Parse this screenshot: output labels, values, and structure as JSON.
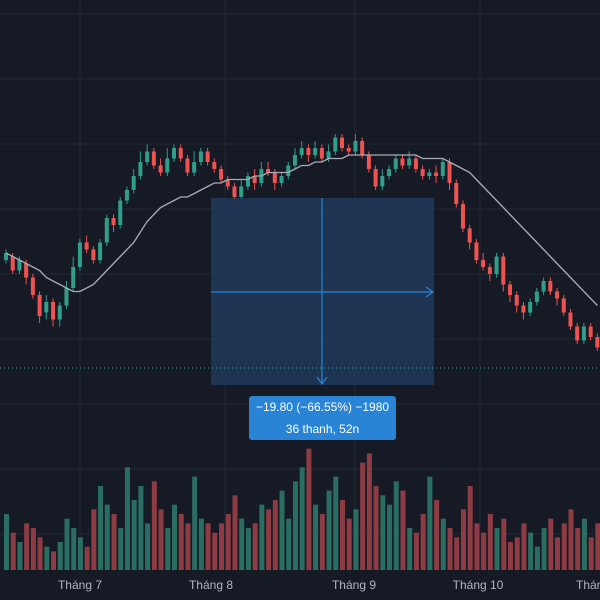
{
  "colors": {
    "background": "#161a25",
    "grid": "#232837",
    "up": "#2f9e8b",
    "down": "#ef5350",
    "volume_up": "#2a6e62",
    "volume_down": "#8d3c44",
    "ma_line": "#a7acb8",
    "measure_fill": "#1f3a5c",
    "measure_accent": "#2a84d6",
    "label_text": "#ffffff",
    "axis_text": "#b2b5be"
  },
  "measure": {
    "line1": "−19.80 (−66.55%) −1980",
    "line2": "36 thanh, 52n"
  },
  "chart_data": {
    "type": "candlestick",
    "x_axis_labels": [
      "Tháng 7",
      "Tháng 8",
      "Tháng 9",
      "Tháng 10",
      "Tháng"
    ],
    "legend": "none",
    "grid": true,
    "series": [
      {
        "kind": "candles",
        "values": [
          {
            "o": 150,
            "c": 152,
            "h": 153,
            "l": 149
          },
          {
            "o": 151,
            "c": 147,
            "h": 152,
            "l": 146
          },
          {
            "o": 147,
            "c": 150,
            "h": 151,
            "l": 146
          },
          {
            "o": 149,
            "c": 145,
            "h": 150,
            "l": 143
          },
          {
            "o": 145,
            "c": 140,
            "h": 146,
            "l": 139
          },
          {
            "o": 140,
            "c": 134,
            "h": 141,
            "l": 132
          },
          {
            "o": 135,
            "c": 138,
            "h": 140,
            "l": 133
          },
          {
            "o": 138,
            "c": 133,
            "h": 139,
            "l": 131
          },
          {
            "o": 133,
            "c": 137,
            "h": 138,
            "l": 131
          },
          {
            "o": 137,
            "c": 142,
            "h": 144,
            "l": 136
          },
          {
            "o": 142,
            "c": 148,
            "h": 151,
            "l": 141
          },
          {
            "o": 148,
            "c": 155,
            "h": 156,
            "l": 147
          },
          {
            "o": 155,
            "c": 153,
            "h": 157,
            "l": 152
          },
          {
            "o": 153,
            "c": 150,
            "h": 154,
            "l": 149
          },
          {
            "o": 150,
            "c": 155,
            "h": 156,
            "l": 149
          },
          {
            "o": 155,
            "c": 162,
            "h": 163,
            "l": 154
          },
          {
            "o": 162,
            "c": 160,
            "h": 163,
            "l": 158
          },
          {
            "o": 160,
            "c": 167,
            "h": 168,
            "l": 159
          },
          {
            "o": 167,
            "c": 170,
            "h": 171,
            "l": 166
          },
          {
            "o": 170,
            "c": 174,
            "h": 176,
            "l": 169
          },
          {
            "o": 174,
            "c": 178,
            "h": 181,
            "l": 173
          },
          {
            "o": 178,
            "c": 181,
            "h": 183,
            "l": 177
          },
          {
            "o": 181,
            "c": 177,
            "h": 182,
            "l": 176
          },
          {
            "o": 177,
            "c": 175,
            "h": 179,
            "l": 174
          },
          {
            "o": 175,
            "c": 179,
            "h": 182,
            "l": 174
          },
          {
            "o": 179,
            "c": 182,
            "h": 183,
            "l": 178
          },
          {
            "o": 182,
            "c": 179,
            "h": 183,
            "l": 178
          },
          {
            "o": 179,
            "c": 175,
            "h": 180,
            "l": 174
          },
          {
            "o": 175,
            "c": 178,
            "h": 181,
            "l": 174
          },
          {
            "o": 178,
            "c": 181,
            "h": 182,
            "l": 177
          },
          {
            "o": 181,
            "c": 178,
            "h": 182,
            "l": 177
          },
          {
            "o": 178,
            "c": 176,
            "h": 179,
            "l": 175
          },
          {
            "o": 176,
            "c": 173,
            "h": 177,
            "l": 172
          },
          {
            "o": 173,
            "c": 171,
            "h": 174,
            "l": 170
          },
          {
            "o": 171,
            "c": 168,
            "h": 172,
            "l": 167
          },
          {
            "o": 168,
            "c": 171,
            "h": 173,
            "l": 167
          },
          {
            "o": 171,
            "c": 174,
            "h": 175,
            "l": 170
          },
          {
            "o": 174,
            "c": 172,
            "h": 176,
            "l": 170
          },
          {
            "o": 172,
            "c": 176,
            "h": 178,
            "l": 171
          },
          {
            "o": 176,
            "c": 175,
            "h": 178,
            "l": 174
          },
          {
            "o": 175,
            "c": 172,
            "h": 176,
            "l": 170
          },
          {
            "o": 172,
            "c": 174,
            "h": 175,
            "l": 171
          },
          {
            "o": 174,
            "c": 177,
            "h": 178,
            "l": 173
          },
          {
            "o": 177,
            "c": 180,
            "h": 182,
            "l": 176
          },
          {
            "o": 180,
            "c": 182,
            "h": 184,
            "l": 179
          },
          {
            "o": 182,
            "c": 180,
            "h": 183,
            "l": 178
          },
          {
            "o": 180,
            "c": 182,
            "h": 184,
            "l": 179
          },
          {
            "o": 182,
            "c": 179,
            "h": 183,
            "l": 178
          },
          {
            "o": 179,
            "c": 181,
            "h": 183,
            "l": 178
          },
          {
            "o": 181,
            "c": 185,
            "h": 186,
            "l": 180
          },
          {
            "o": 185,
            "c": 182,
            "h": 186,
            "l": 181
          },
          {
            "o": 182,
            "c": 181,
            "h": 183,
            "l": 180
          },
          {
            "o": 181,
            "c": 184,
            "h": 186,
            "l": 180
          },
          {
            "o": 184,
            "c": 180,
            "h": 185,
            "l": 179
          },
          {
            "o": 180,
            "c": 176,
            "h": 181,
            "l": 175
          },
          {
            "o": 176,
            "c": 171,
            "h": 177,
            "l": 170
          },
          {
            "o": 171,
            "c": 174,
            "h": 176,
            "l": 170
          },
          {
            "o": 174,
            "c": 176,
            "h": 177,
            "l": 173
          },
          {
            "o": 176,
            "c": 179,
            "h": 180,
            "l": 175
          },
          {
            "o": 179,
            "c": 177,
            "h": 180,
            "l": 176
          },
          {
            "o": 177,
            "c": 179,
            "h": 181,
            "l": 176
          },
          {
            "o": 179,
            "c": 176,
            "h": 180,
            "l": 175
          },
          {
            "o": 176,
            "c": 174,
            "h": 177,
            "l": 173
          },
          {
            "o": 174,
            "c": 175,
            "h": 176,
            "l": 173
          },
          {
            "o": 175,
            "c": 174,
            "h": 177,
            "l": 172
          },
          {
            "o": 174,
            "c": 178,
            "h": 179,
            "l": 173
          },
          {
            "o": 178,
            "c": 172,
            "h": 179,
            "l": 170
          },
          {
            "o": 172,
            "c": 166,
            "h": 173,
            "l": 165
          },
          {
            "o": 166,
            "c": 159,
            "h": 167,
            "l": 158
          },
          {
            "o": 159,
            "c": 155,
            "h": 160,
            "l": 153
          },
          {
            "o": 155,
            "c": 150,
            "h": 156,
            "l": 149
          },
          {
            "o": 150,
            "c": 148,
            "h": 152,
            "l": 147
          },
          {
            "o": 148,
            "c": 146,
            "h": 149,
            "l": 144
          },
          {
            "o": 146,
            "c": 151,
            "h": 152,
            "l": 145
          },
          {
            "o": 151,
            "c": 143,
            "h": 152,
            "l": 141
          },
          {
            "o": 143,
            "c": 140,
            "h": 144,
            "l": 138
          },
          {
            "o": 140,
            "c": 137,
            "h": 141,
            "l": 135
          },
          {
            "o": 137,
            "c": 135,
            "h": 138,
            "l": 133
          },
          {
            "o": 135,
            "c": 138,
            "h": 139,
            "l": 134
          },
          {
            "o": 138,
            "c": 141,
            "h": 142,
            "l": 137
          },
          {
            "o": 141,
            "c": 144,
            "h": 145,
            "l": 140
          },
          {
            "o": 144,
            "c": 141,
            "h": 145,
            "l": 140
          },
          {
            "o": 141,
            "c": 139,
            "h": 142,
            "l": 137
          },
          {
            "o": 139,
            "c": 135,
            "h": 140,
            "l": 134
          },
          {
            "o": 135,
            "c": 131,
            "h": 136,
            "l": 130
          },
          {
            "o": 131,
            "c": 127,
            "h": 132,
            "l": 126
          },
          {
            "o": 127,
            "c": 131,
            "h": 132,
            "l": 126
          },
          {
            "o": 131,
            "c": 128,
            "h": 132,
            "l": 127
          },
          {
            "o": 128,
            "c": 125,
            "h": 129,
            "l": 124
          }
        ]
      },
      {
        "kind": "moving_average",
        "values": [
          152,
          151,
          150,
          149,
          148,
          147,
          145,
          144,
          143,
          142,
          141,
          141,
          142,
          143,
          145,
          147,
          149,
          151,
          153,
          155,
          158,
          161,
          163,
          165,
          166,
          167,
          168,
          168,
          169,
          170,
          171,
          172,
          172,
          173,
          173,
          173,
          173,
          174,
          174,
          175,
          175,
          175,
          175,
          176,
          177,
          177,
          178,
          178,
          179,
          179,
          179,
          180,
          180,
          180,
          180,
          180,
          180,
          180,
          180,
          180,
          180,
          180,
          179,
          179,
          179,
          179,
          178,
          177,
          176,
          175,
          173,
          171,
          169,
          167,
          165,
          163,
          161,
          159,
          157,
          155,
          153,
          151,
          149,
          147,
          145,
          143,
          141,
          139,
          137
        ]
      },
      {
        "kind": "volume",
        "values": [
          12,
          8,
          6,
          10,
          9,
          7,
          5,
          4,
          6,
          11,
          9,
          7,
          5,
          13,
          18,
          14,
          12,
          9,
          22,
          15,
          18,
          10,
          19,
          13,
          9,
          14,
          12,
          10,
          20,
          11,
          10,
          8,
          10,
          12,
          16,
          11,
          9,
          10,
          14,
          13,
          15,
          17,
          11,
          19,
          22,
          26,
          14,
          12,
          17,
          20,
          15,
          11,
          13,
          23,
          25,
          18,
          16,
          14,
          19,
          17,
          9,
          8,
          12,
          20,
          15,
          11,
          9,
          7,
          13,
          18,
          10,
          8,
          12,
          9,
          11,
          6,
          7,
          10,
          8,
          5,
          9,
          11,
          7,
          10,
          13,
          9,
          11,
          7,
          10
        ]
      }
    ],
    "volume_direction": "follows candle color",
    "ylim": [
      110,
      190
    ],
    "volume_max": 30
  }
}
